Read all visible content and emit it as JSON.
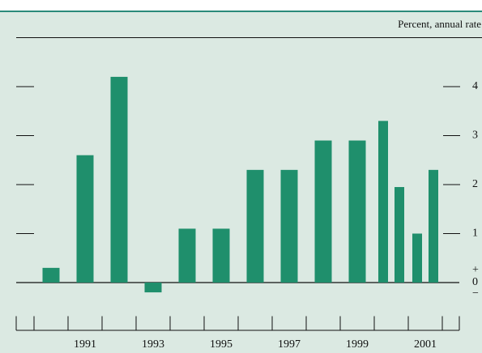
{
  "chart_data": {
    "type": "bar",
    "unit_label": "Percent, annual rate",
    "categories": [
      null,
      "1991",
      null,
      "1993",
      null,
      "1995",
      null,
      "1997",
      null,
      "1999",
      null,
      "2001"
    ],
    "values": [
      [
        0.3
      ],
      [
        2.6
      ],
      [
        4.2
      ],
      [
        -0.2
      ],
      [
        1.1
      ],
      [
        1.1
      ],
      [
        2.3
      ],
      [
        2.3
      ],
      [
        2.9
      ],
      [
        2.9
      ],
      [
        3.3,
        1.95
      ],
      [
        1.0,
        2.3
      ]
    ],
    "color": "#1f8f6c",
    "ylim": [
      -1,
      5
    ],
    "yticks": [
      0,
      1,
      2,
      3,
      4
    ],
    "zero_signs": [
      "+",
      "−"
    ]
  }
}
